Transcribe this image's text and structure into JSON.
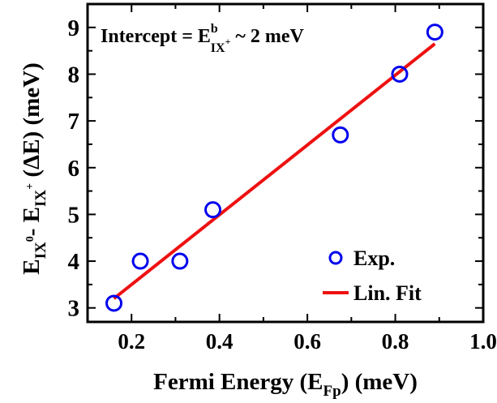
{
  "chart_data": {
    "type": "scatter",
    "title": "",
    "xlabel": {
      "main": "Fermi Energy (E",
      "sub": "Fp",
      "tail": ") (meV)"
    },
    "ylabel": {
      "p1": "E",
      "sub1": "IX",
      "sup1": "0",
      "p2": "- E",
      "sub2": "IX",
      "sup2": "+",
      "p3": " (ΔE) (meV)"
    },
    "xlim": [
      0.1,
      1.0
    ],
    "ylim": [
      2.7,
      9.5
    ],
    "xticks": [
      0.2,
      0.4,
      0.6,
      0.8,
      1.0
    ],
    "xtick_labels": [
      "0.2",
      "0.4",
      "0.6",
      "0.8",
      "1.0"
    ],
    "yticks": [
      3,
      4,
      5,
      6,
      7,
      8,
      9
    ],
    "ytick_labels": [
      "3",
      "4",
      "5",
      "6",
      "7",
      "8",
      "9"
    ],
    "annotation": {
      "pre": "Intercept = E",
      "sup": "b",
      "sub": "IX",
      "subsup": "+",
      "post": " ~ 2 meV"
    },
    "series": [
      {
        "name": "Exp.",
        "kind": "scatter",
        "color": "#0000ee",
        "x": [
          0.16,
          0.22,
          0.31,
          0.385,
          0.675,
          0.81,
          0.89
        ],
        "y": [
          3.1,
          4.0,
          4.0,
          5.1,
          6.7,
          8.0,
          8.9
        ]
      },
      {
        "name": "Lin. Fit",
        "kind": "line",
        "color": "#ee1111",
        "x": [
          0.16,
          0.89
        ],
        "y": [
          3.2,
          8.65
        ]
      }
    ],
    "legend_position": "bottom-right",
    "grid": false
  }
}
